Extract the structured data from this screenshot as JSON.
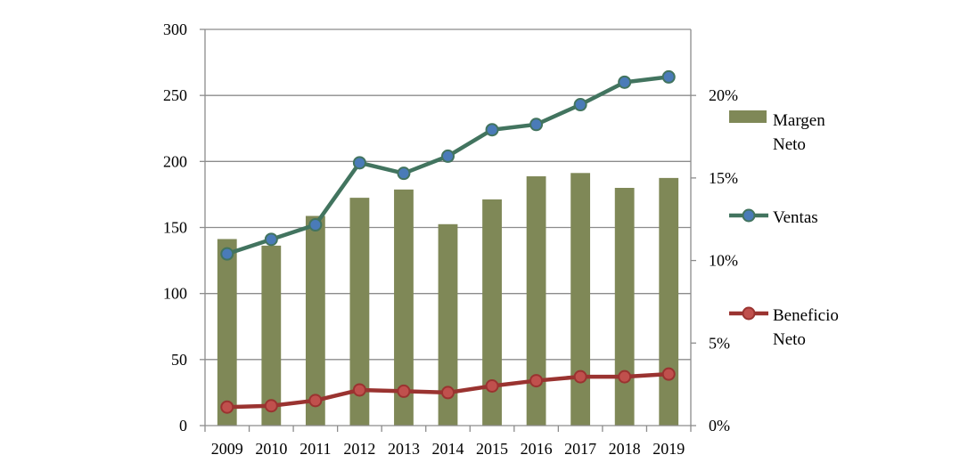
{
  "chart_data": {
    "type": "bar+line",
    "title": "",
    "categories": [
      "2009",
      "2010",
      "2011",
      "2012",
      "2013",
      "2014",
      "2015",
      "2016",
      "2017",
      "2018",
      "2019"
    ],
    "series": [
      {
        "name": "Margen Neto",
        "type": "bar",
        "axis": "right",
        "unit": "%",
        "color": "#7f8857",
        "values": [
          11.3,
          10.9,
          12.7,
          13.8,
          14.3,
          12.2,
          13.7,
          15.1,
          15.3,
          14.4,
          15.0
        ]
      },
      {
        "name": "Ventas",
        "type": "line",
        "axis": "left",
        "color": "#42745f",
        "marker_fill": "#4a7bb8",
        "values": [
          130,
          141,
          152,
          199,
          191,
          204,
          224,
          228,
          243,
          260,
          264
        ]
      },
      {
        "name": "Beneficio Neto",
        "type": "line",
        "axis": "left",
        "color": "#9a3330",
        "marker_fill": "#c0504d",
        "values": [
          14,
          15,
          19,
          27,
          26,
          25,
          30,
          34,
          37,
          37,
          39
        ]
      }
    ],
    "y_left": {
      "min": 0,
      "max": 300,
      "ticks": [
        "0",
        "50",
        "100",
        "150",
        "200",
        "250",
        "300"
      ]
    },
    "y_right": {
      "min": 0,
      "max": 24,
      "ticks": [
        "0%",
        "5%",
        "10%",
        "15%",
        "20%"
      ]
    },
    "grid": true,
    "legend": {
      "position": "right",
      "items": [
        {
          "series": "Margen Neto",
          "lines": [
            "Margen",
            "Neto"
          ]
        },
        {
          "series": "Ventas",
          "lines": [
            "Ventas"
          ]
        },
        {
          "series": "Beneficio Neto",
          "lines": [
            "Beneficio",
            "Neto"
          ]
        }
      ]
    }
  }
}
